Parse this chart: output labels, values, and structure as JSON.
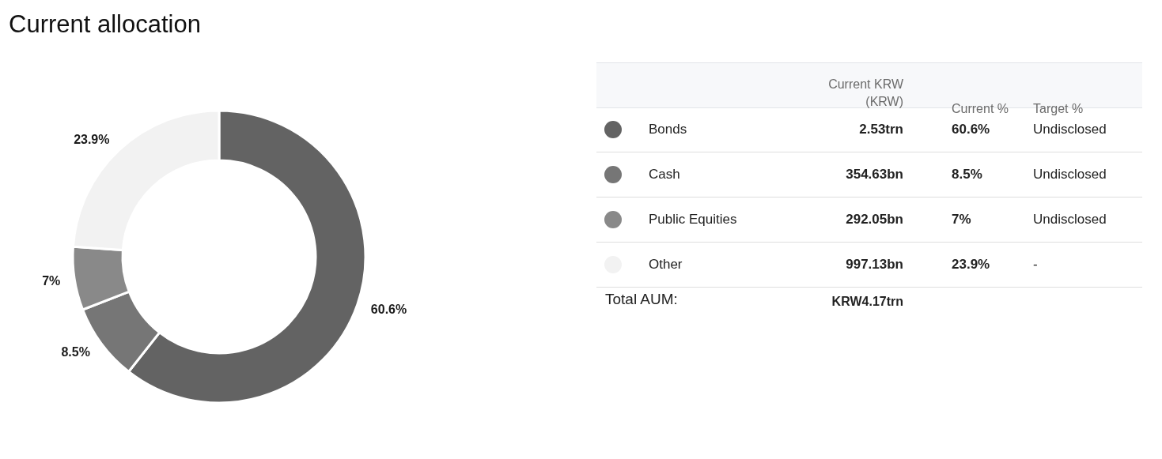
{
  "chart_data": {
    "type": "donut",
    "title": "Current allocation",
    "categories": [
      "Bonds",
      "Cash",
      "Public Equities",
      "Other"
    ],
    "values": [
      60.6,
      8.5,
      7,
      23.9
    ],
    "value_labels": [
      "60.6%",
      "8.5%",
      "7%",
      "23.9%"
    ],
    "colors": [
      "#636363",
      "#767676",
      "#898989",
      "#f2f2f2"
    ],
    "legend": "right",
    "annotations": [
      "Current KRW (KRW)",
      "Current %",
      "Target %",
      "2.53trn",
      "354.63bn",
      "292.05bn",
      "997.13bn",
      "Undisclosed",
      "Undisclosed",
      "Undisclosed",
      "-",
      "Total AUM:",
      "KRW4.17trn"
    ]
  }
}
